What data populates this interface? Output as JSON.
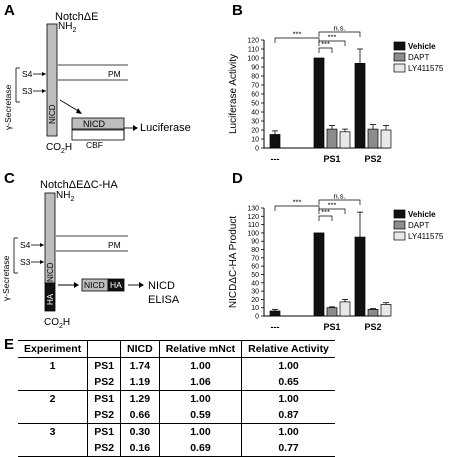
{
  "panels": {
    "A": {
      "letter": "A",
      "title": "NotchΔE",
      "nh2": "NH",
      "nh2_sub": "2",
      "co2h": "CO",
      "co2h_sub": "2",
      "co2h_tail": "H",
      "gamma": "γ-Secretase",
      "s4": "S4",
      "s3": "S3",
      "pm": "PM",
      "nicd_bar": "NICD",
      "nicd_box": "NICD",
      "cbf": "CBF",
      "reporter": "Luciferase"
    },
    "B": {
      "letter": "B"
    },
    "C": {
      "letter": "C",
      "title": "NotchΔEΔC-HA",
      "nh2": "NH",
      "nh2_sub": "2",
      "co2h": "CO",
      "co2h_sub": "2",
      "co2h_tail": "H",
      "gamma": "γ-Secretase",
      "s4": "S4",
      "s3": "S3",
      "pm": "PM",
      "nicd_bar": "NICD",
      "ha_bar": "HA",
      "nicd_box": "NICD",
      "ha_box": "HA",
      "out1": "NICD",
      "out2": "ELISA"
    },
    "D": {
      "letter": "D"
    },
    "E": {
      "letter": "E"
    }
  },
  "colors": {
    "vehicle": "#111111",
    "dapt": "#8c8c8c",
    "ly": "#e8e8e8",
    "membrane": "#000000",
    "nicd_fill": "#bdbdbd",
    "ha_fill": "#111111"
  },
  "chart_data": [
    {
      "type": "bar",
      "panel": "B",
      "ylabel": "Luciferase Activity",
      "categories": [
        "---",
        "PS1",
        "PS2"
      ],
      "ylim": [
        0,
        120
      ],
      "yticks": [
        0,
        10,
        20,
        30,
        40,
        50,
        60,
        70,
        80,
        90,
        100,
        110,
        120
      ],
      "legend_position": "top-right",
      "series": [
        {
          "name": "Vehicle",
          "values": [
            15,
            100,
            94
          ],
          "errors": [
            4,
            0,
            16
          ]
        },
        {
          "name": "DAPT",
          "values": [
            null,
            21,
            21
          ],
          "errors": [
            null,
            4,
            5
          ]
        },
        {
          "name": "LY411575",
          "values": [
            null,
            18,
            20
          ],
          "errors": [
            null,
            3,
            5
          ]
        }
      ],
      "annotations": [
        "***",
        "***",
        "***",
        "n.s."
      ]
    },
    {
      "type": "bar",
      "panel": "D",
      "ylabel": "NICDΔC-HA Product",
      "categories": [
        "---",
        "PS1",
        "PS2"
      ],
      "ylim": [
        0,
        130
      ],
      "yticks": [
        0,
        10,
        20,
        30,
        40,
        50,
        60,
        70,
        80,
        90,
        100,
        110,
        120,
        130
      ],
      "legend_position": "top-right",
      "series": [
        {
          "name": "Vehicle",
          "values": [
            6,
            100,
            95
          ],
          "errors": [
            2,
            0,
            30
          ]
        },
        {
          "name": "DAPT",
          "values": [
            null,
            10,
            8
          ],
          "errors": [
            null,
            1,
            1
          ]
        },
        {
          "name": "LY411575",
          "values": [
            null,
            17,
            14
          ],
          "errors": [
            null,
            3,
            2
          ]
        }
      ],
      "annotations": [
        "***",
        "***",
        "***",
        "n.s."
      ]
    },
    {
      "type": "table",
      "panel": "E",
      "columns": [
        "Experiment",
        "",
        "NICD",
        "Relative mNct",
        "Relative Activity"
      ],
      "rows": [
        [
          "1",
          "PS1",
          "1.74",
          "1.00",
          "1.00"
        ],
        [
          "",
          "PS2",
          "1.19",
          "1.06",
          "0.65"
        ],
        [
          "2",
          "PS1",
          "1.29",
          "1.00",
          "1.00"
        ],
        [
          "",
          "PS2",
          "0.66",
          "0.59",
          "0.87"
        ],
        [
          "3",
          "PS1",
          "0.30",
          "1.00",
          "1.00"
        ],
        [
          "",
          "PS2",
          "0.16",
          "0.69",
          "0.77"
        ]
      ]
    }
  ]
}
